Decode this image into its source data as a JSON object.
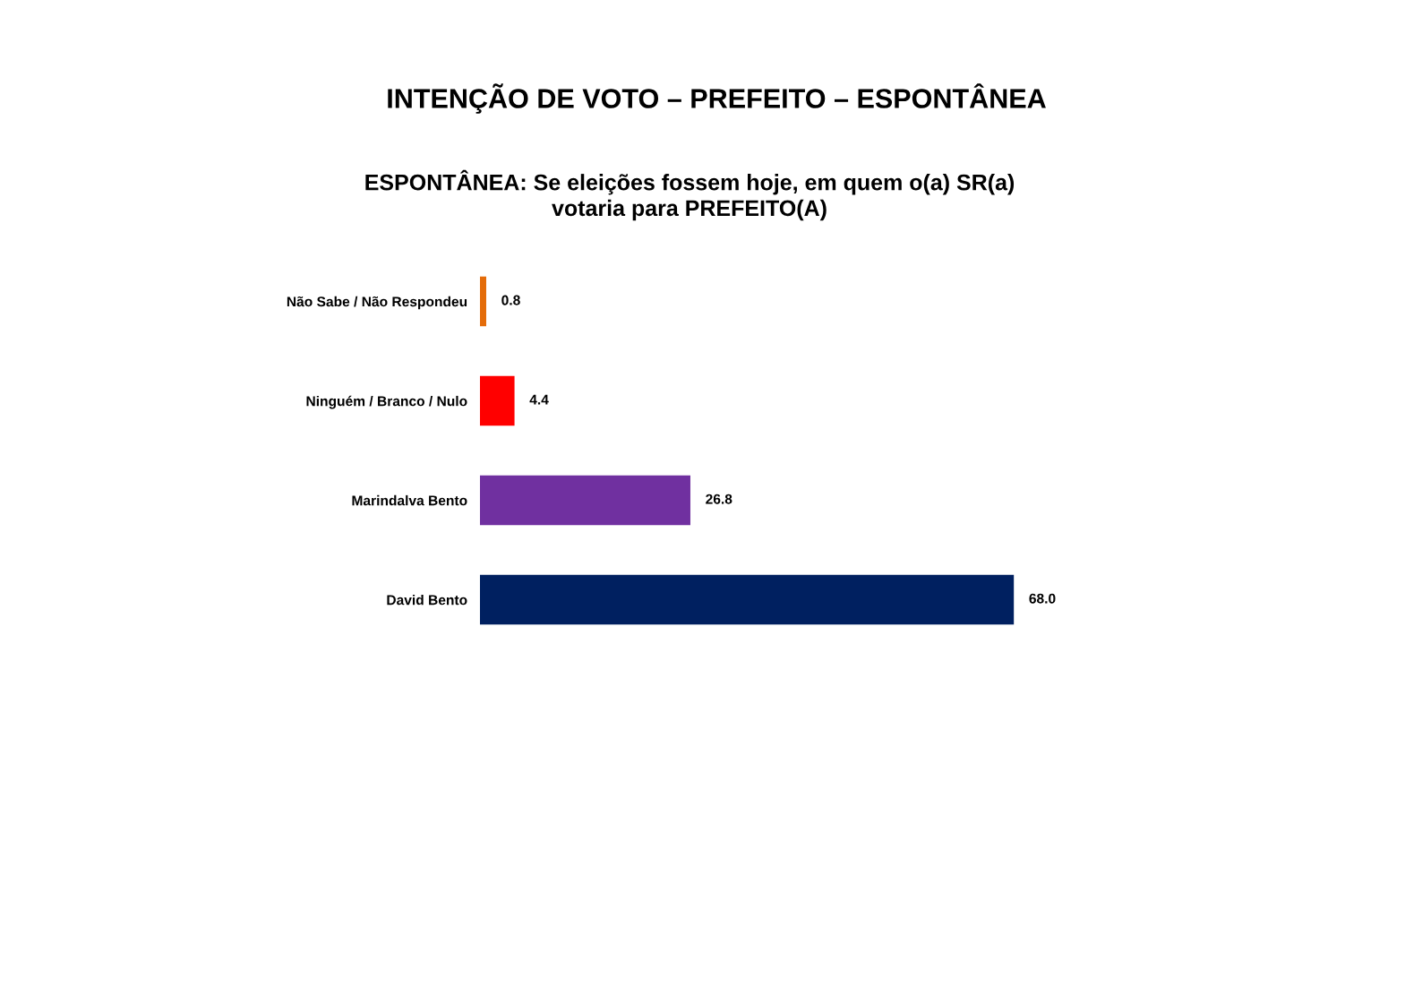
{
  "chart_data": {
    "type": "bar",
    "orientation": "horizontal",
    "title": "INTENÇÃO DE VOTO – PREFEITO – ESPONTÂNEA",
    "subtitle": "ESPONTÂNEA: Se eleições fossem hoje, em quem o(a) SR(a)\nvotaria para PREFEITO(A)",
    "categories": [
      "Não Sabe / Não Respondeu",
      "Ninguém / Branco / Nulo",
      "Marindalva Bento",
      "David Bento"
    ],
    "values": [
      0.8,
      4.4,
      26.8,
      68.0
    ],
    "value_labels": [
      "0.8",
      "4.4",
      "26.8",
      "68.0"
    ],
    "colors": [
      "#e46c0a",
      "#ff0000",
      "#7030a0",
      "#002060"
    ],
    "tick_labels": "y"
  }
}
